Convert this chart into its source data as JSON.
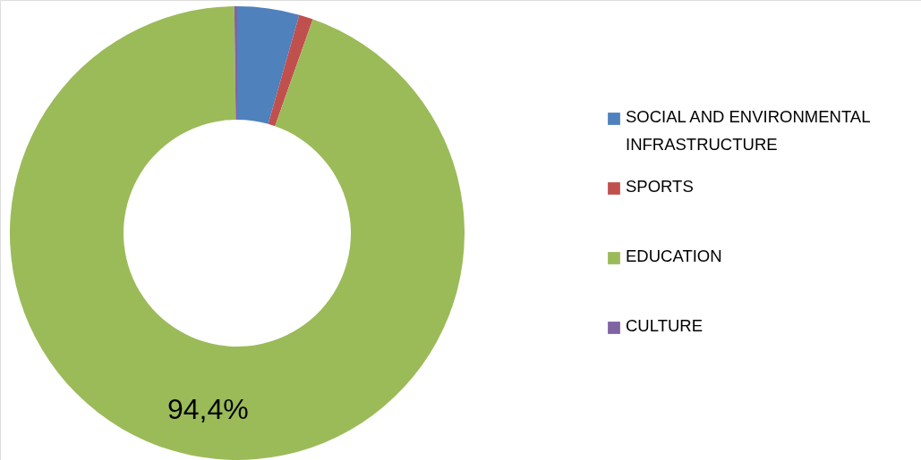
{
  "chart_data": {
    "type": "donut",
    "categories": [
      "SOCIAL AND ENVIRONMENTAL INFRASTRUCTURE",
      "SPORTS",
      "EDUCATION",
      "CULTURE"
    ],
    "values": [
      4.4,
      1.0,
      94.4,
      0.2
    ],
    "colors": [
      "#4f81bd",
      "#c0504d",
      "#9bbb59",
      "#8064a2"
    ],
    "value_labels": [
      null,
      null,
      "94,4%",
      null
    ],
    "legend": "right"
  }
}
